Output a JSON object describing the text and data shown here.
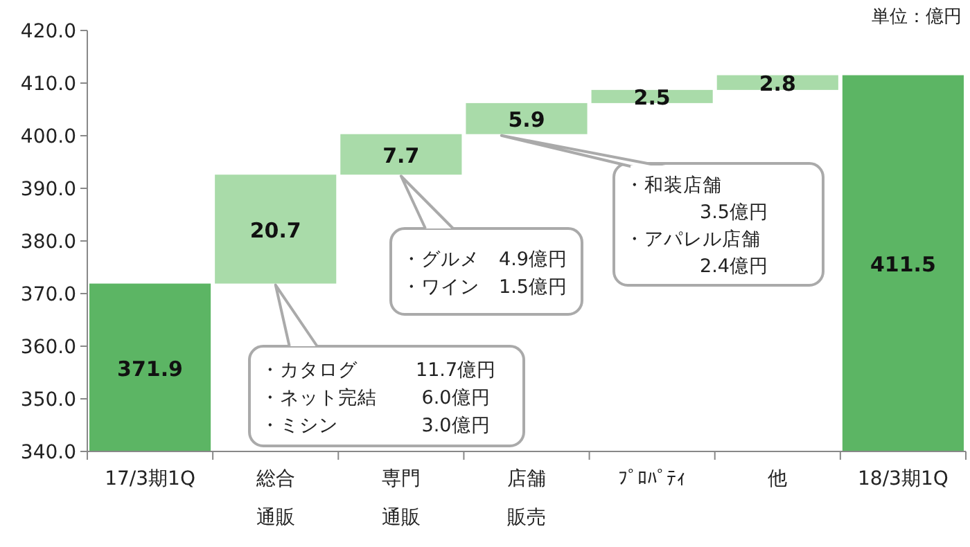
{
  "chart_data": {
    "type": "bar",
    "categories": [
      "17/3期1Q",
      "総合通販",
      "専門通販",
      "店舗販売",
      "ﾌﾟﾛﾊﾟﾃｨ",
      "他",
      "18/3期1Q"
    ],
    "values": [
      371.9,
      20.7,
      7.7,
      5.9,
      2.5,
      2.8,
      411.5
    ],
    "base": [
      null,
      371.9,
      392.6,
      400.3,
      406.2,
      408.7,
      null
    ],
    "colors": [
      "#5cb564",
      "#a9dba9",
      "#a9dba9",
      "#a9dba9",
      "#a9dba9",
      "#a9dba9",
      "#5cb564"
    ],
    "ylim": [
      340,
      420
    ],
    "yticks": [
      {
        "value": 340,
        "label": "340.0"
      },
      {
        "value": 350,
        "label": "350.0"
      },
      {
        "value": 360,
        "label": "360.0"
      },
      {
        "value": 370,
        "label": "370.0"
      },
      {
        "value": 380,
        "label": "380.0"
      },
      {
        "value": 390,
        "label": "390.0"
      },
      {
        "value": 400,
        "label": "400.0"
      },
      {
        "value": 410,
        "label": "410.0"
      },
      {
        "value": 420,
        "label": "420.0"
      }
    ],
    "data_labels": true,
    "annotations": [
      "単位：億円",
      "・カタログ　　　11.7億円",
      "・ネット完結　　 6.0億円",
      "・ミシン　　　　 3.0億円",
      "・グルメ　4.9億円",
      "・ワイン　1.5億円",
      "・和装店舗",
      "3.5億円",
      "・アパレル店舗",
      "2.4億円"
    ]
  }
}
